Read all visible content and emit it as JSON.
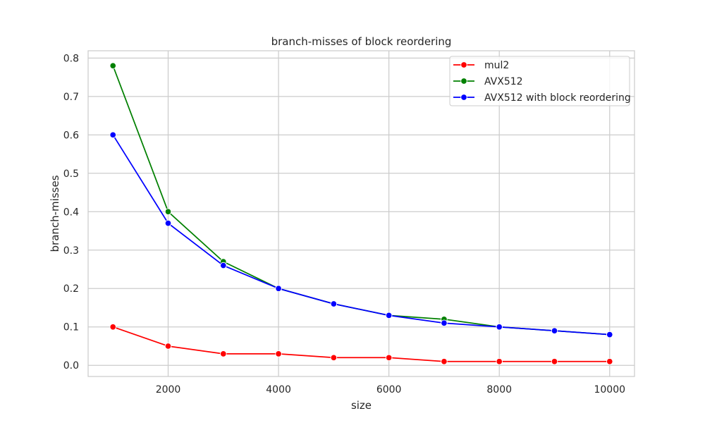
{
  "chart_data": {
    "type": "line",
    "title": "branch-misses of block reordering",
    "xlabel": "size",
    "ylabel": "branch-misses",
    "x": [
      1000,
      2000,
      3000,
      4000,
      5000,
      6000,
      7000,
      8000,
      9000,
      10000
    ],
    "xlim": [
      550,
      10450
    ],
    "ylim": [
      -0.029,
      0.819
    ],
    "xticks": [
      2000,
      4000,
      6000,
      8000,
      10000
    ],
    "xtick_labels": [
      "2000",
      "4000",
      "6000",
      "8000",
      "10000"
    ],
    "yticks": [
      0.0,
      0.1,
      0.2,
      0.3,
      0.4,
      0.5,
      0.6,
      0.7,
      0.8
    ],
    "ytick_labels": [
      "0.0",
      "0.1",
      "0.2",
      "0.3",
      "0.4",
      "0.5",
      "0.6",
      "0.7",
      "0.8"
    ],
    "grid": true,
    "legend_position": "top-right",
    "series": [
      {
        "name": "mul2",
        "color": "#ff0000",
        "values": [
          0.1,
          0.05,
          0.03,
          0.03,
          0.02,
          0.02,
          0.01,
          0.01,
          0.01,
          0.01
        ]
      },
      {
        "name": "AVX512",
        "color": "#008000",
        "values": [
          0.78,
          0.4,
          0.27,
          0.2,
          0.16,
          0.13,
          0.12,
          0.1,
          0.09,
          0.08
        ]
      },
      {
        "name": "AVX512 with block reordering",
        "color": "#0000ff",
        "values": [
          0.6,
          0.37,
          0.26,
          0.2,
          0.16,
          0.13,
          0.11,
          0.1,
          0.09,
          0.08
        ]
      }
    ]
  }
}
